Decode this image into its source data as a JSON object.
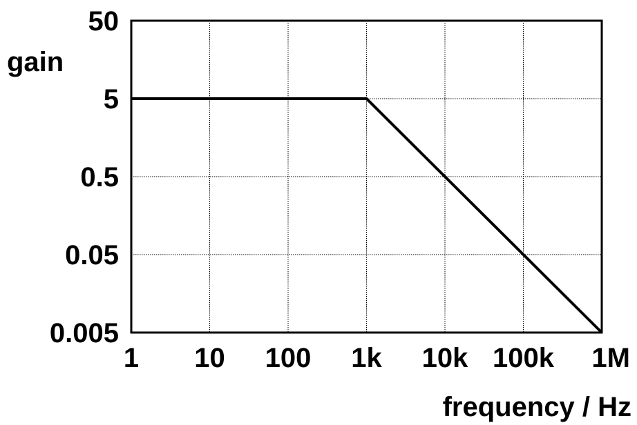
{
  "chart_data": {
    "type": "line",
    "title": "",
    "xlabel": "frequency / Hz",
    "ylabel": "gain",
    "x_scale": "log",
    "y_scale": "log",
    "xlim": [
      1,
      1000000
    ],
    "ylim": [
      0.005,
      50
    ],
    "x_ticks": [
      1,
      10,
      100,
      1000,
      10000,
      100000,
      1000000
    ],
    "x_tick_labels": [
      "1",
      "10",
      "100",
      "1k",
      "10k",
      "100k",
      "1M"
    ],
    "y_ticks": [
      0.005,
      0.05,
      0.5,
      5,
      50
    ],
    "y_tick_labels": [
      "0.005",
      "0.05",
      "0.5",
      "5",
      "50"
    ],
    "grid": true,
    "series": [
      {
        "x": [
          1,
          1000,
          1000000
        ],
        "y": [
          5,
          5,
          0.005
        ]
      }
    ],
    "colors": {
      "line": "#000000",
      "grid": "#000000",
      "frame": "#000000"
    }
  }
}
